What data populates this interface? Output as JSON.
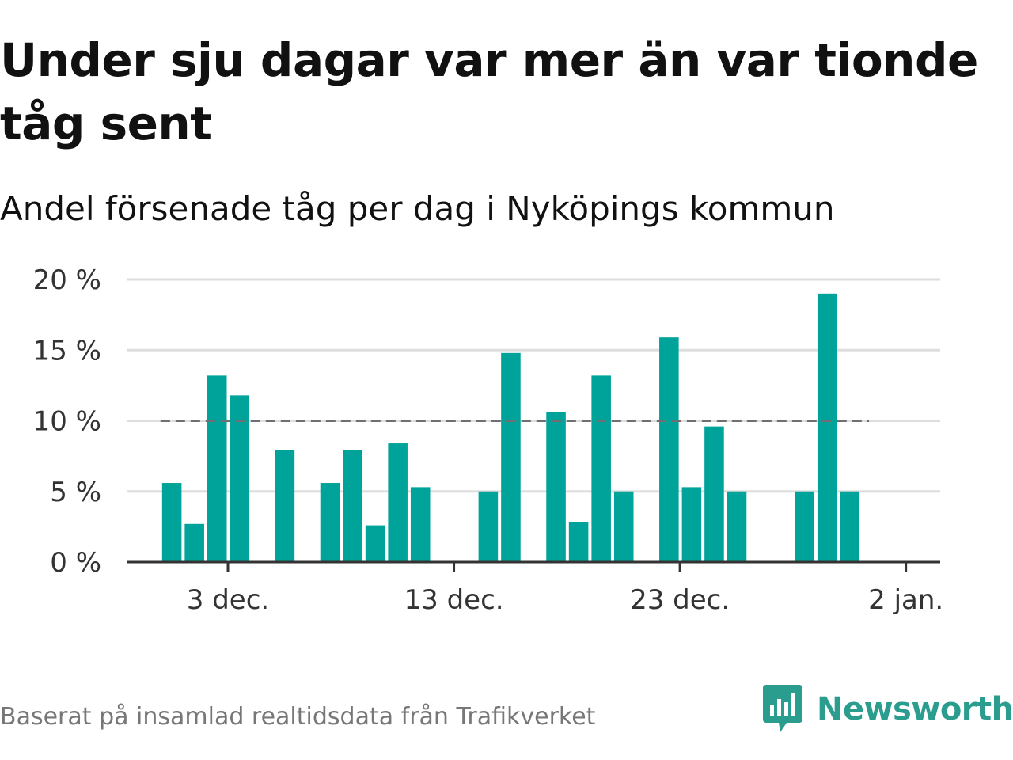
{
  "title": "Under sju dagar var mer än var tionde tåg sent",
  "subtitle": "Andel försenade tåg per dag i Nyköpings kommun",
  "source": "Baserat på insamlad realtidsdata från Trafikverket",
  "logo": {
    "text": "Newsworthy",
    "icon": "newsworthy-chart-icon",
    "color": "#2a9d8f"
  },
  "colors": {
    "bar": "#00a39a",
    "reference_line": "#6e6e73",
    "grid": "#dddddd",
    "axis": "#333333",
    "text": "#333333"
  },
  "chart_data": {
    "type": "bar",
    "title": "Under sju dagar var mer än var tionde tåg sent",
    "subtitle": "Andel försenade tåg per dag i Nyköpings kommun",
    "x_unit": "day",
    "x": [
      "2017-11-30",
      "2017-12-01",
      "2017-12-02",
      "2017-12-03",
      "2017-12-04",
      "2017-12-05",
      "2017-12-06",
      "2017-12-07",
      "2017-12-08",
      "2017-12-09",
      "2017-12-10",
      "2017-12-11",
      "2017-12-12",
      "2017-12-13",
      "2017-12-14",
      "2017-12-15",
      "2017-12-16",
      "2017-12-17",
      "2017-12-18",
      "2017-12-19",
      "2017-12-20",
      "2017-12-21",
      "2017-12-22",
      "2017-12-23",
      "2017-12-24",
      "2017-12-25",
      "2017-12-26",
      "2017-12-27",
      "2017-12-28",
      "2017-12-29",
      "2017-12-30",
      "2017-12-31",
      "2018-01-01"
    ],
    "values": [
      5.6,
      2.7,
      13.2,
      11.8,
      null,
      7.9,
      null,
      5.6,
      7.9,
      2.6,
      8.4,
      5.3,
      null,
      null,
      5.0,
      14.8,
      null,
      10.6,
      2.8,
      13.2,
      5.0,
      null,
      15.9,
      5.3,
      9.6,
      5.0,
      null,
      null,
      5.0,
      19.0,
      5.0,
      null,
      null
    ],
    "xlim": [
      "2017-11-28",
      "2018-01-03"
    ],
    "ylim": [
      0,
      20
    ],
    "y_ticks": [
      0,
      5,
      10,
      15,
      20
    ],
    "y_tick_labels": [
      "0 %",
      "5 %",
      "10 %",
      "15 %",
      "20 %"
    ],
    "x_ticks": [
      "2017-12-03",
      "2017-12-13",
      "2017-12-23",
      "2018-01-02"
    ],
    "x_tick_labels": [
      "3 dec.",
      "13 dec.",
      "23 dec.",
      "2 jan."
    ],
    "reference_line": {
      "y": 10,
      "from": "2017-11-30",
      "to": "2017-12-31",
      "style": "dashed"
    },
    "grid": true,
    "legend": "none"
  }
}
